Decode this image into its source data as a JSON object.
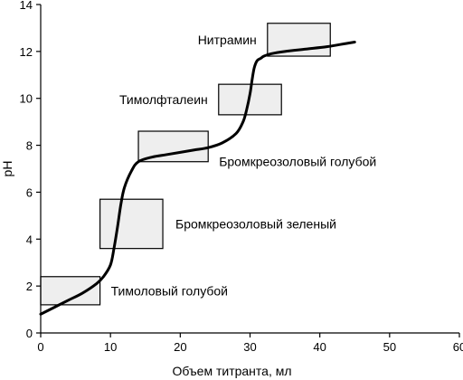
{
  "chart_data": {
    "type": "line",
    "title": "",
    "xlabel": "Объем титранта, мл",
    "ylabel": "pH",
    "xlim": [
      0,
      60
    ],
    "ylim": [
      0,
      14
    ],
    "x_ticks": [
      "0",
      "10",
      "20",
      "30",
      "40",
      "50",
      "60"
    ],
    "y_ticks": [
      "0",
      "2",
      "4",
      "6",
      "8",
      "10",
      "12",
      "14"
    ],
    "grid": false,
    "legend": "none",
    "series": [
      {
        "x": [
          0,
          2,
          4,
          6,
          8,
          9,
          10,
          10.5,
          11,
          11.5,
          12,
          13,
          14,
          16,
          18,
          20,
          22,
          24,
          26,
          28,
          29,
          29.5,
          30,
          30.3,
          30.6,
          31,
          31.5,
          32,
          33,
          35,
          38,
          41,
          43,
          45
        ],
        "y": [
          0.8,
          1.1,
          1.4,
          1.7,
          2.1,
          2.4,
          2.9,
          3.6,
          4.5,
          5.5,
          6.2,
          6.9,
          7.3,
          7.5,
          7.6,
          7.7,
          7.8,
          7.9,
          8.1,
          8.5,
          9.0,
          9.5,
          10.2,
          10.8,
          11.3,
          11.6,
          11.7,
          11.8,
          11.9,
          12.0,
          12.1,
          12.2,
          12.3,
          12.4
        ]
      }
    ],
    "indicators": [
      {
        "name": "Тимоловый голубой",
        "x_range": [
          0,
          8.5
        ],
        "y_range": [
          1.2,
          2.4
        ]
      },
      {
        "name": "Бромкреозоловый зеленый",
        "x_range": [
          8.5,
          17.5
        ],
        "y_range": [
          3.6,
          5.7
        ]
      },
      {
        "name": "Бромкреозоловый голубой",
        "x_range": [
          14,
          24
        ],
        "y_range": [
          7.3,
          8.6
        ]
      },
      {
        "name": "Тимолфталеин",
        "x_range": [
          25.5,
          34.5
        ],
        "y_range": [
          9.3,
          10.6
        ]
      },
      {
        "name": "Нитрамин",
        "x_range": [
          32.5,
          41.5
        ],
        "y_range": [
          11.8,
          13.2
        ]
      }
    ]
  }
}
